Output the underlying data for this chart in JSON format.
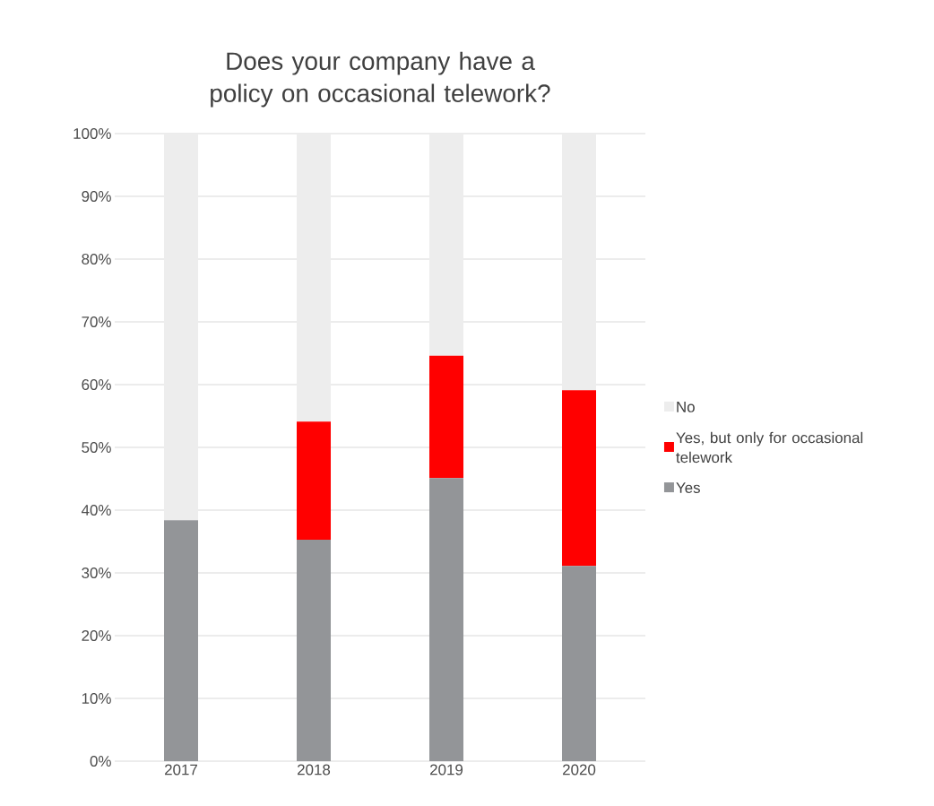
{
  "chart_data": {
    "type": "bar",
    "stacked": true,
    "title": "Does your company have a policy on occasional telework?",
    "categories": [
      "2017",
      "2018",
      "2019",
      "2020"
    ],
    "series": [
      {
        "name": "Yes",
        "color": "#939598",
        "values": [
          38.4,
          35.3,
          45.1,
          31.1
        ]
      },
      {
        "name": "Yes, but only for occasional telework",
        "color": "#ff0000",
        "values": [
          0,
          18.8,
          19.5,
          28.0
        ]
      },
      {
        "name": "No",
        "color": "#ededed",
        "values": [
          61.6,
          45.9,
          35.4,
          40.9
        ]
      }
    ],
    "ylim": [
      0,
      100
    ],
    "yticks": [
      {
        "value": 0,
        "label": "0%"
      },
      {
        "value": 10,
        "label": "10%"
      },
      {
        "value": 20,
        "label": "20%"
      },
      {
        "value": 30,
        "label": "30%"
      },
      {
        "value": 40,
        "label": "40%"
      },
      {
        "value": 50,
        "label": "50%"
      },
      {
        "value": 60,
        "label": "60%"
      },
      {
        "value": 70,
        "label": "70%"
      },
      {
        "value": 80,
        "label": "80%"
      },
      {
        "value": 90,
        "label": "90%"
      },
      {
        "value": 100,
        "label": "100%"
      }
    ],
    "grid": "y",
    "legend": "right"
  }
}
